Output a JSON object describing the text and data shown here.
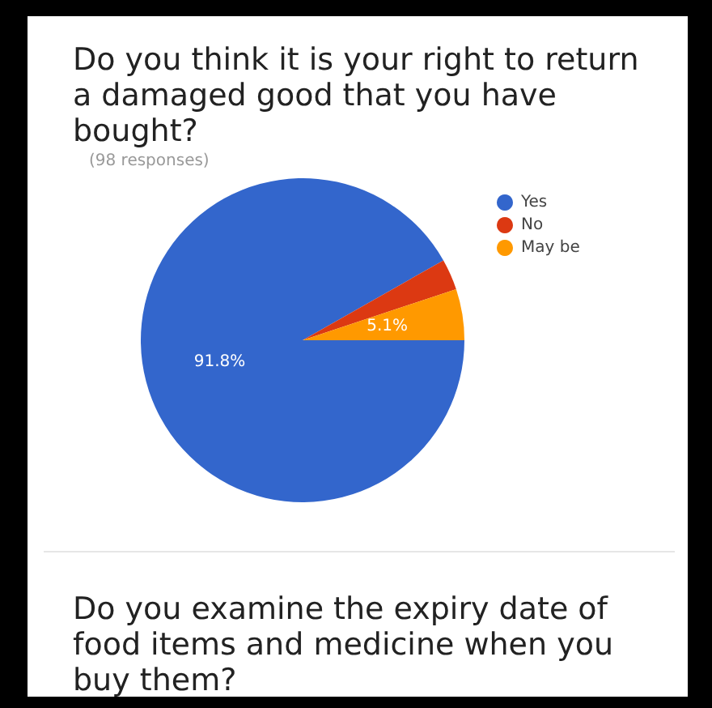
{
  "chart_data": {
    "type": "pie",
    "title": "Do you think it is your right to return a damaged good that you have bought?",
    "subtitle": "(98 responses)",
    "categories": [
      "Yes",
      "No",
      "May be"
    ],
    "values": [
      91.8,
      3.1,
      5.1
    ],
    "colors": [
      "#3366cc",
      "#dc3912",
      "#ff9900"
    ],
    "value_labels": [
      "91.8%",
      null,
      "5.1%"
    ],
    "legend": "top right",
    "annotations": [
      "Do you examine the expiry date of food items and medicine when you buy them?"
    ]
  }
}
